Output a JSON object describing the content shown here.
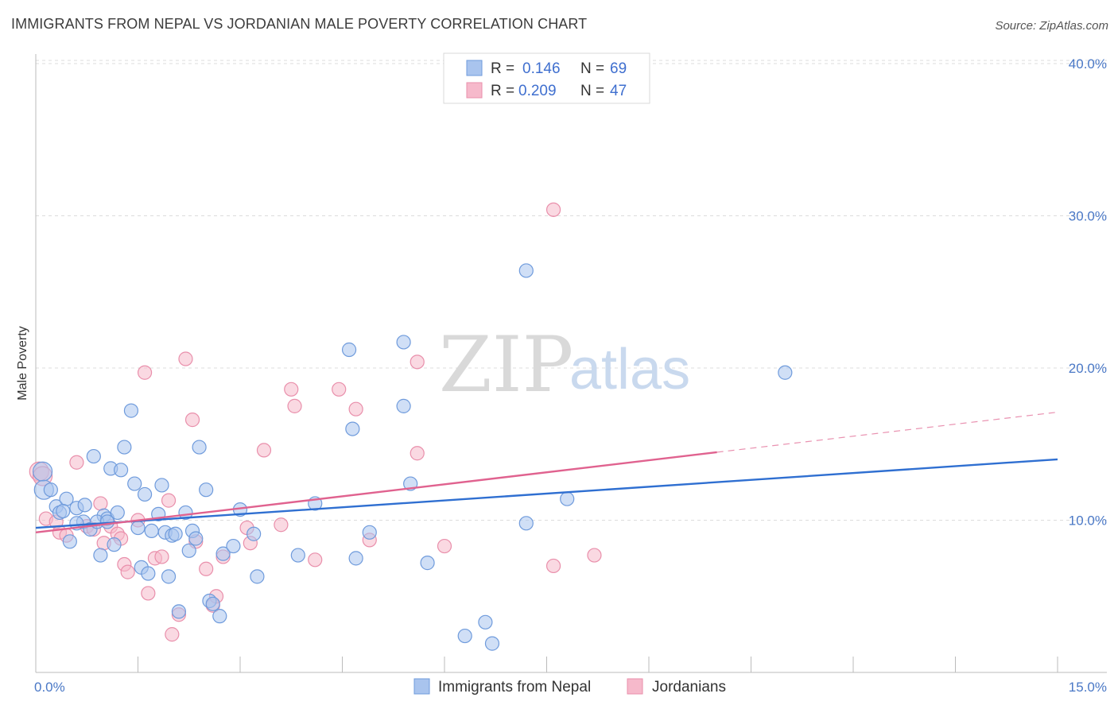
{
  "header": {
    "title": "IMMIGRANTS FROM NEPAL VS JORDANIAN MALE POVERTY CORRELATION CHART",
    "source": "Source: ZipAtlas.com"
  },
  "watermark": {
    "zip": "ZIP",
    "atlas": "atlas"
  },
  "legend": {
    "r_label": "R =",
    "n_label": "N =",
    "entries": [
      {
        "r": "0.146",
        "n": "69"
      },
      {
        "r": "0.209",
        "n": "47"
      }
    ]
  },
  "colors": {
    "blue_fill": "#a9c4ee",
    "blue_stroke": "#6f9bdc",
    "blue_line": "#2f6fd1",
    "pink_fill": "#f6b9cb",
    "pink_stroke": "#e98fab",
    "pink_line": "#e0628f",
    "grid": "#dcdcdc"
  },
  "chart_data": {
    "type": "scatter",
    "title": "IMMIGRANTS FROM NEPAL VS JORDANIAN MALE POVERTY CORRELATION CHART",
    "xlabel": "",
    "ylabel": "Male Poverty",
    "xlim": [
      0,
      15
    ],
    "ylim": [
      0,
      40
    ],
    "x_tick_labels": [
      "0.0%",
      "15.0%"
    ],
    "y_ticks": [
      10,
      20,
      30,
      40
    ],
    "y_tick_labels": [
      "10.0%",
      "20.0%",
      "30.0%",
      "40.0%"
    ],
    "legend_position": "top-center",
    "series": [
      {
        "name": "Immigrants from Nepal",
        "r": 0.146,
        "n": 69,
        "trend": {
          "x0": 0,
          "y0": 9.5,
          "x1": 15,
          "y1": 14.0,
          "solid_until": 15
        },
        "points": [
          [
            0.1,
            13.2
          ],
          [
            0.12,
            12.0
          ],
          [
            0.3,
            10.9
          ],
          [
            0.35,
            10.5
          ],
          [
            0.45,
            11.4
          ],
          [
            0.5,
            8.6
          ],
          [
            0.6,
            10.8
          ],
          [
            0.7,
            9.9
          ],
          [
            0.72,
            11.0
          ],
          [
            0.8,
            9.4
          ],
          [
            0.85,
            14.2
          ],
          [
            0.95,
            7.7
          ],
          [
            1.0,
            10.3
          ],
          [
            1.05,
            10.1
          ],
          [
            1.1,
            13.4
          ],
          [
            1.15,
            8.4
          ],
          [
            1.2,
            10.5
          ],
          [
            1.25,
            13.3
          ],
          [
            1.3,
            14.8
          ],
          [
            1.4,
            17.2
          ],
          [
            1.45,
            12.4
          ],
          [
            1.5,
            9.5
          ],
          [
            1.55,
            6.9
          ],
          [
            1.6,
            11.7
          ],
          [
            1.65,
            6.5
          ],
          [
            1.7,
            9.3
          ],
          [
            1.8,
            10.4
          ],
          [
            1.85,
            12.3
          ],
          [
            1.9,
            9.2
          ],
          [
            1.95,
            6.3
          ],
          [
            2.0,
            9.0
          ],
          [
            2.05,
            9.1
          ],
          [
            2.1,
            4.0
          ],
          [
            2.2,
            10.5
          ],
          [
            2.25,
            8.0
          ],
          [
            2.3,
            9.3
          ],
          [
            2.35,
            8.8
          ],
          [
            2.4,
            14.8
          ],
          [
            2.5,
            12.0
          ],
          [
            2.55,
            4.7
          ],
          [
            2.6,
            4.5
          ],
          [
            2.7,
            3.7
          ],
          [
            2.75,
            7.8
          ],
          [
            2.9,
            8.3
          ],
          [
            3.0,
            10.7
          ],
          [
            3.25,
            6.3
          ],
          [
            3.2,
            9.1
          ],
          [
            3.85,
            7.7
          ],
          [
            4.1,
            11.1
          ],
          [
            4.6,
            21.2
          ],
          [
            4.65,
            16.0
          ],
          [
            4.7,
            7.5
          ],
          [
            4.9,
            9.2
          ],
          [
            5.4,
            21.7
          ],
          [
            5.4,
            17.5
          ],
          [
            5.5,
            12.4
          ],
          [
            5.75,
            7.2
          ],
          [
            6.3,
            2.4
          ],
          [
            6.6,
            3.3
          ],
          [
            6.7,
            1.9
          ],
          [
            7.2,
            26.4
          ],
          [
            7.2,
            9.8
          ],
          [
            7.8,
            11.4
          ],
          [
            11.0,
            19.7
          ],
          [
            0.22,
            12.0
          ],
          [
            0.6,
            9.8
          ],
          [
            0.9,
            9.9
          ],
          [
            1.05,
            9.9
          ],
          [
            0.4,
            10.6
          ]
        ]
      },
      {
        "name": "Jordanians",
        "r": 0.209,
        "n": 47,
        "trend": {
          "x0": 0,
          "y0": 9.2,
          "x1": 15,
          "y1": 17.1,
          "solid_until": 10.0
        },
        "points": [
          [
            0.05,
            13.2
          ],
          [
            0.1,
            12.9
          ],
          [
            0.15,
            10.1
          ],
          [
            0.3,
            9.9
          ],
          [
            0.35,
            9.2
          ],
          [
            0.45,
            9.0
          ],
          [
            0.6,
            13.8
          ],
          [
            0.75,
            9.6
          ],
          [
            0.85,
            9.4
          ],
          [
            0.95,
            11.1
          ],
          [
            1.0,
            8.5
          ],
          [
            1.1,
            9.6
          ],
          [
            1.2,
            9.1
          ],
          [
            1.25,
            8.8
          ],
          [
            1.3,
            7.1
          ],
          [
            1.35,
            6.6
          ],
          [
            1.5,
            10.0
          ],
          [
            1.6,
            19.7
          ],
          [
            1.65,
            5.2
          ],
          [
            1.75,
            7.5
          ],
          [
            1.85,
            7.6
          ],
          [
            1.95,
            11.3
          ],
          [
            2.0,
            2.5
          ],
          [
            2.1,
            3.8
          ],
          [
            2.2,
            20.6
          ],
          [
            2.3,
            16.6
          ],
          [
            2.35,
            8.6
          ],
          [
            2.5,
            6.8
          ],
          [
            2.6,
            4.4
          ],
          [
            2.65,
            5.0
          ],
          [
            2.75,
            7.6
          ],
          [
            3.1,
            9.5
          ],
          [
            3.15,
            8.5
          ],
          [
            3.35,
            14.6
          ],
          [
            3.6,
            9.7
          ],
          [
            3.75,
            18.6
          ],
          [
            3.8,
            17.5
          ],
          [
            4.1,
            7.4
          ],
          [
            4.45,
            18.6
          ],
          [
            4.7,
            17.3
          ],
          [
            4.9,
            8.7
          ],
          [
            5.6,
            20.4
          ],
          [
            5.6,
            14.4
          ],
          [
            6.0,
            8.3
          ],
          [
            7.6,
            30.4
          ],
          [
            7.6,
            7.0
          ],
          [
            8.2,
            7.7
          ]
        ]
      }
    ]
  },
  "bottom_legend": [
    "Immigrants from Nepal",
    "Jordanians"
  ]
}
